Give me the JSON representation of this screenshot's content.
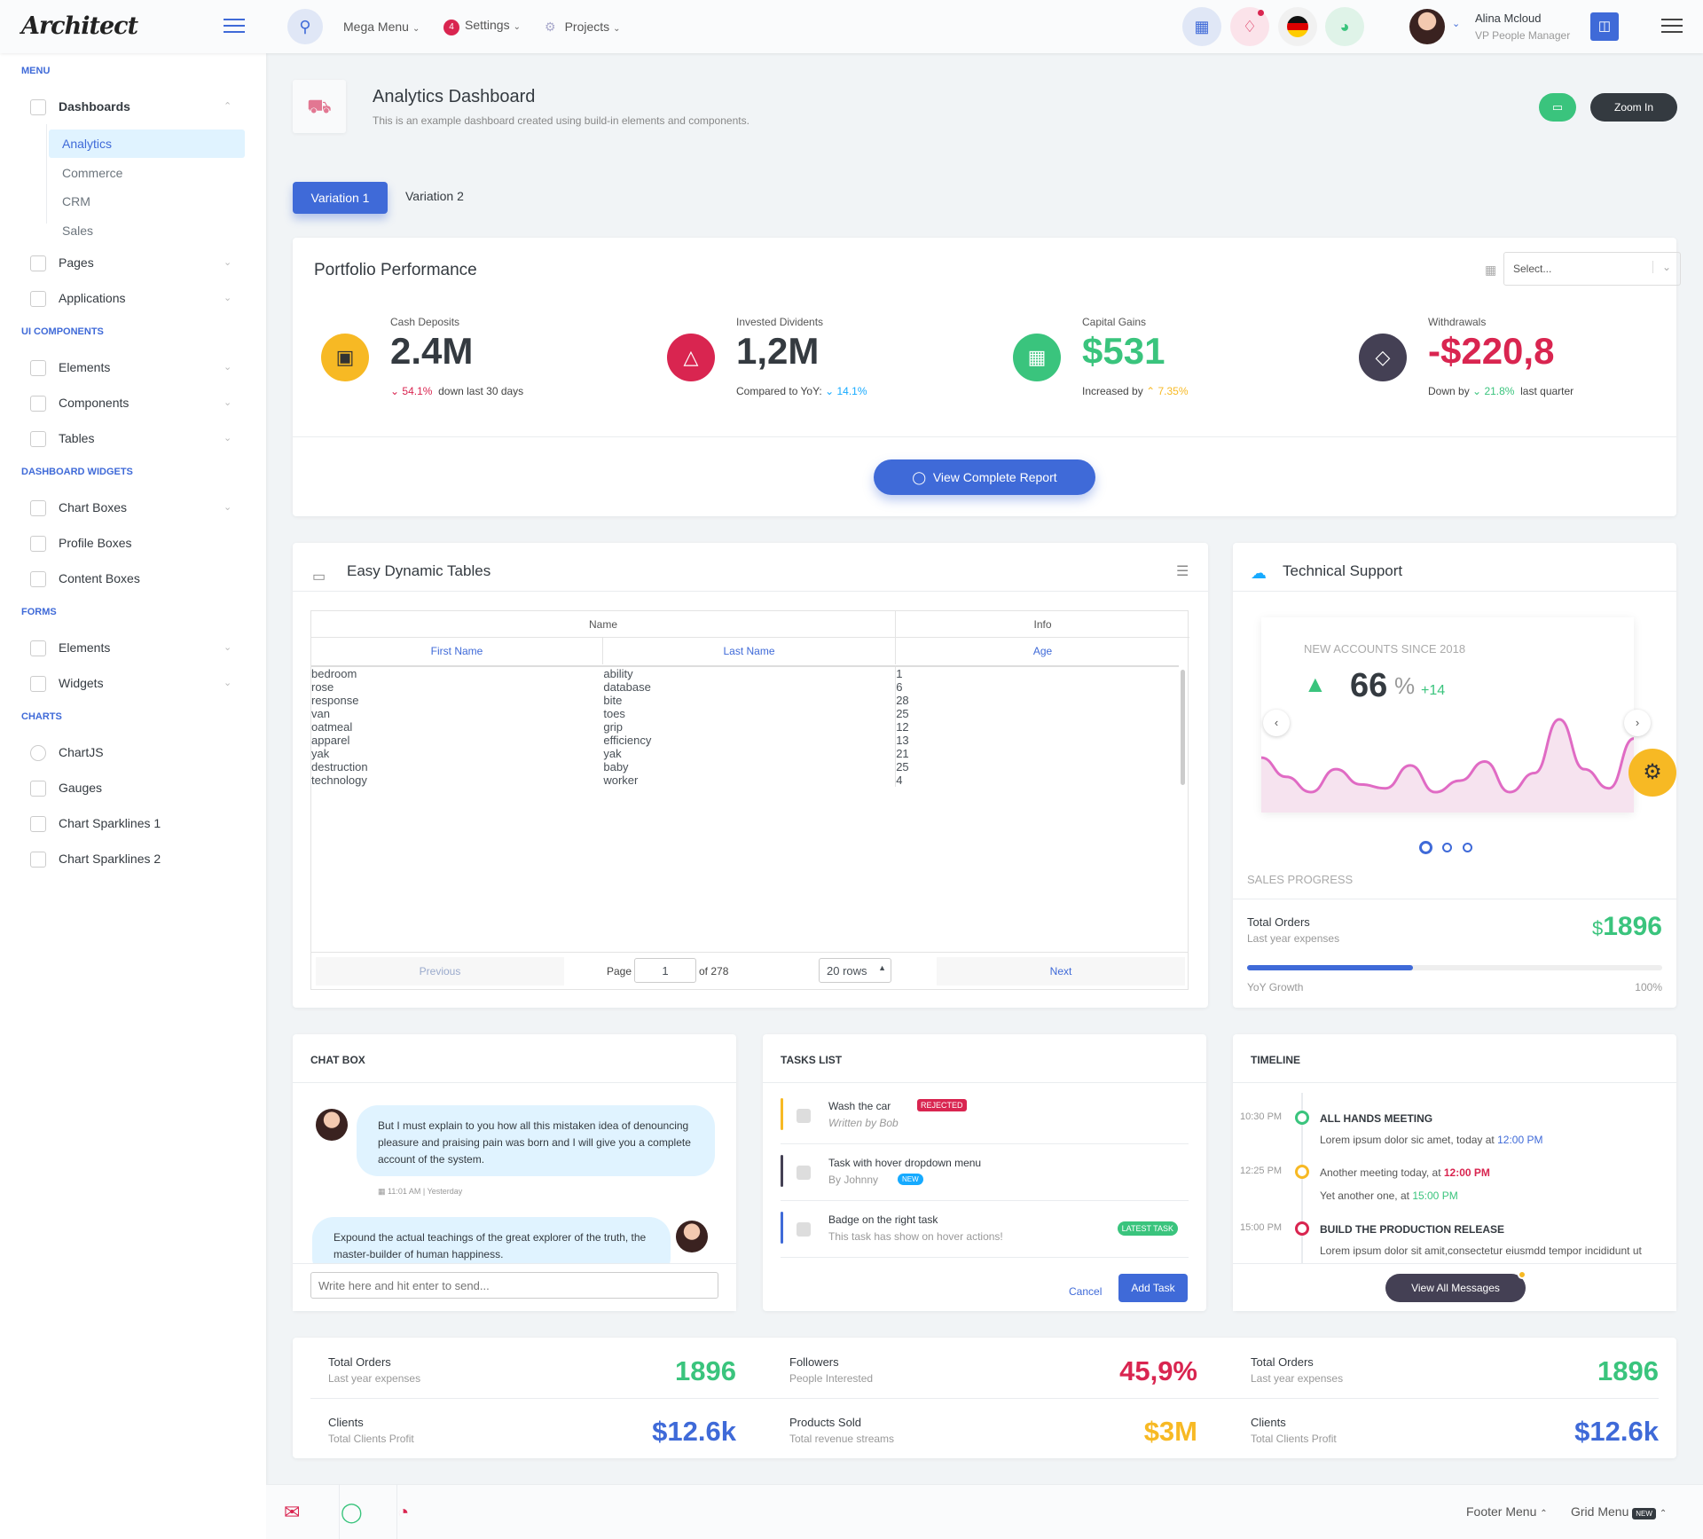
{
  "brand": "Architect",
  "header": {
    "mega": "Mega Menu",
    "settings": "Settings",
    "settings_badge": "4",
    "projects": "Projects",
    "user_name": "Alina Mcloud",
    "user_role": "VP People Manager"
  },
  "sidebar": {
    "menu": "MENU",
    "dashboards": "Dashboards",
    "analytics": "Analytics",
    "commerce": "Commerce",
    "crm": "CRM",
    "sales": "Sales",
    "pages": "Pages",
    "applications": "Applications",
    "ui": "UI COMPONENTS",
    "elements": "Elements",
    "components": "Components",
    "tables": "Tables",
    "widgets": "DASHBOARD WIDGETS",
    "chart_boxes": "Chart Boxes",
    "profile_boxes": "Profile Boxes",
    "content_boxes": "Content Boxes",
    "forms": "FORMS",
    "f_elements": "Elements",
    "f_widgets": "Widgets",
    "charts": "CHARTS",
    "chartjs": "ChartJS",
    "gauges": "Gauges",
    "spark1": "Chart Sparklines 1",
    "spark2": "Chart Sparklines 2"
  },
  "page": {
    "title": "Analytics Dashboard",
    "subtitle": "This is an example dashboard created using build-in elements and components.",
    "zoom": "Zoom In",
    "tab1": "Variation 1",
    "tab2": "Variation 2"
  },
  "portfolio": {
    "title": "Portfolio Performance",
    "select": "Select...",
    "report": "View Complete Report",
    "kpis": [
      {
        "label": "Cash Deposits",
        "value": "2.4M",
        "pct": "54.1%",
        "note": "down last 30 days"
      },
      {
        "label": "Invested Dividents",
        "value": "1,2M",
        "pre": "Compared to YoY:",
        "pct": "14.1%"
      },
      {
        "label": "Capital Gains",
        "value": "$531",
        "pre": "Increased by",
        "pct": "7.35%"
      },
      {
        "label": "Withdrawals",
        "value": "-$220,8",
        "pre": "Down by",
        "pct": "21.8%",
        "note": "last quarter"
      }
    ]
  },
  "tables": {
    "title": "Easy Dynamic Tables",
    "g_name": "Name",
    "g_info": "Info",
    "h_first": "First Name",
    "h_last": "Last Name",
    "h_age": "Age",
    "rows": [
      [
        "bedroom",
        "ability",
        "1"
      ],
      [
        "rose",
        "database",
        "6"
      ],
      [
        "response",
        "bite",
        "28"
      ],
      [
        "van",
        "toes",
        "25"
      ],
      [
        "oatmeal",
        "grip",
        "12"
      ],
      [
        "apparel",
        "efficiency",
        "13"
      ],
      [
        "yak",
        "yak",
        "21"
      ],
      [
        "destruction",
        "baby",
        "25"
      ],
      [
        "technology",
        "worker",
        "4"
      ]
    ],
    "prev": "Previous",
    "page_label": "Page",
    "page": "1",
    "of": "of 278",
    "rows_sel": "20 rows",
    "next": "Next"
  },
  "support": {
    "title": "Technical Support",
    "since": "NEW ACCOUNTS SINCE 2018",
    "value": "66",
    "pct_sign": "%",
    "delta": "+14",
    "progress_label": "SALES PROGRESS",
    "orders": "Total Orders",
    "orders_sub": "Last year expenses",
    "orders_val": "1896",
    "dollar": "$",
    "growth": "YoY Growth",
    "growth_pct": "100%",
    "progress": 0.4,
    "spark": [
      12,
      7,
      3,
      9,
      5,
      4,
      10,
      3,
      6,
      11,
      3,
      8,
      22,
      9,
      4,
      17
    ]
  },
  "chat": {
    "title": "CHAT BOX",
    "m1": "But I must explain to you how all this mistaken idea of denouncing pleasure and praising pain was born and I will give you a complete account of the system.",
    "t1": "11:01 AM | Yesterday",
    "m2": "Expound the actual teachings of the great explorer of the truth, the master-builder of human happiness.",
    "placeholder": "Write here and hit enter to send..."
  },
  "tasks": {
    "title": "TASKS LIST",
    "t1": "Wash the car",
    "t1b": "REJECTED",
    "t1s": "Written by Bob",
    "t2": "Task with hover dropdown menu",
    "t2s": "By Johnny",
    "t2b": "NEW",
    "t3": "Badge on the right task",
    "t3s": "This task has show on hover actions!",
    "t3b": "LATEST TASK",
    "cancel": "Cancel",
    "add": "Add Task"
  },
  "timeline": {
    "title": "TIMELINE",
    "e1t": "10:30 PM",
    "e1": "ALL HANDS MEETING",
    "e1d": "Lorem ipsum dolor sic amet, today at",
    "e1h": "12:00 PM",
    "e2t": "12:25 PM",
    "e2": "Another meeting today, at",
    "e2h": "12:00 PM",
    "e2d": "Yet another one, at",
    "e2dh": "15:00 PM",
    "e3t": "15:00 PM",
    "e3": "BUILD THE PRODUCTION RELEASE",
    "e3d": "Lorem ipsum dolor sit amit,consectetur eiusmdd tempor incididunt ut",
    "btn": "View All Messages"
  },
  "stats": [
    {
      "t": "Total Orders",
      "s": "Last year expenses",
      "v": "1896",
      "c": "#3ac47d"
    },
    {
      "t": "Followers",
      "s": "People Interested",
      "v": "45,9%",
      "c": "#d92550"
    },
    {
      "t": "Total Orders",
      "s": "Last year expenses",
      "v": "1896",
      "c": "#3ac47d"
    },
    {
      "t": "Clients",
      "s": "Total Clients Profit",
      "v": "$12.6k",
      "c": "#3f6ad8"
    },
    {
      "t": "Products Sold",
      "s": "Total revenue streams",
      "v": "$3M",
      "c": "#f7b924"
    },
    {
      "t": "Clients",
      "s": "Total Clients Profit",
      "v": "$12.6k",
      "c": "#3f6ad8"
    }
  ],
  "footer": {
    "menu": "Footer Menu",
    "grid": "Grid Menu",
    "new": "NEW"
  }
}
